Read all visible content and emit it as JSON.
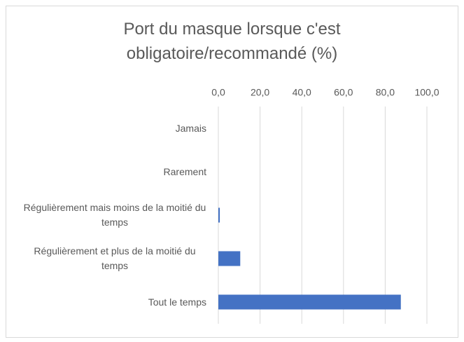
{
  "chart_data": {
    "type": "bar",
    "orientation": "horizontal",
    "title": "Port du masque lorsque c'est obligatoire/recommandé (%)",
    "categories": [
      "Jamais",
      "Rarement",
      "Régulièrement mais moins de la moitié du temps",
      "Régulièrement et plus de la moitié du temps",
      "Tout le temps"
    ],
    "values": [
      0,
      0,
      0.7,
      10.5,
      87.5
    ],
    "color": "#4472c4",
    "xlim": [
      0,
      100
    ],
    "xticks": [
      {
        "value": 0,
        "label": "0,0"
      },
      {
        "value": 20,
        "label": "20,0"
      },
      {
        "value": 40,
        "label": "40,0"
      },
      {
        "value": 60,
        "label": "60,0"
      },
      {
        "value": 80,
        "label": "80,0"
      },
      {
        "value": 100,
        "label": "100,0"
      }
    ],
    "grid": true
  }
}
